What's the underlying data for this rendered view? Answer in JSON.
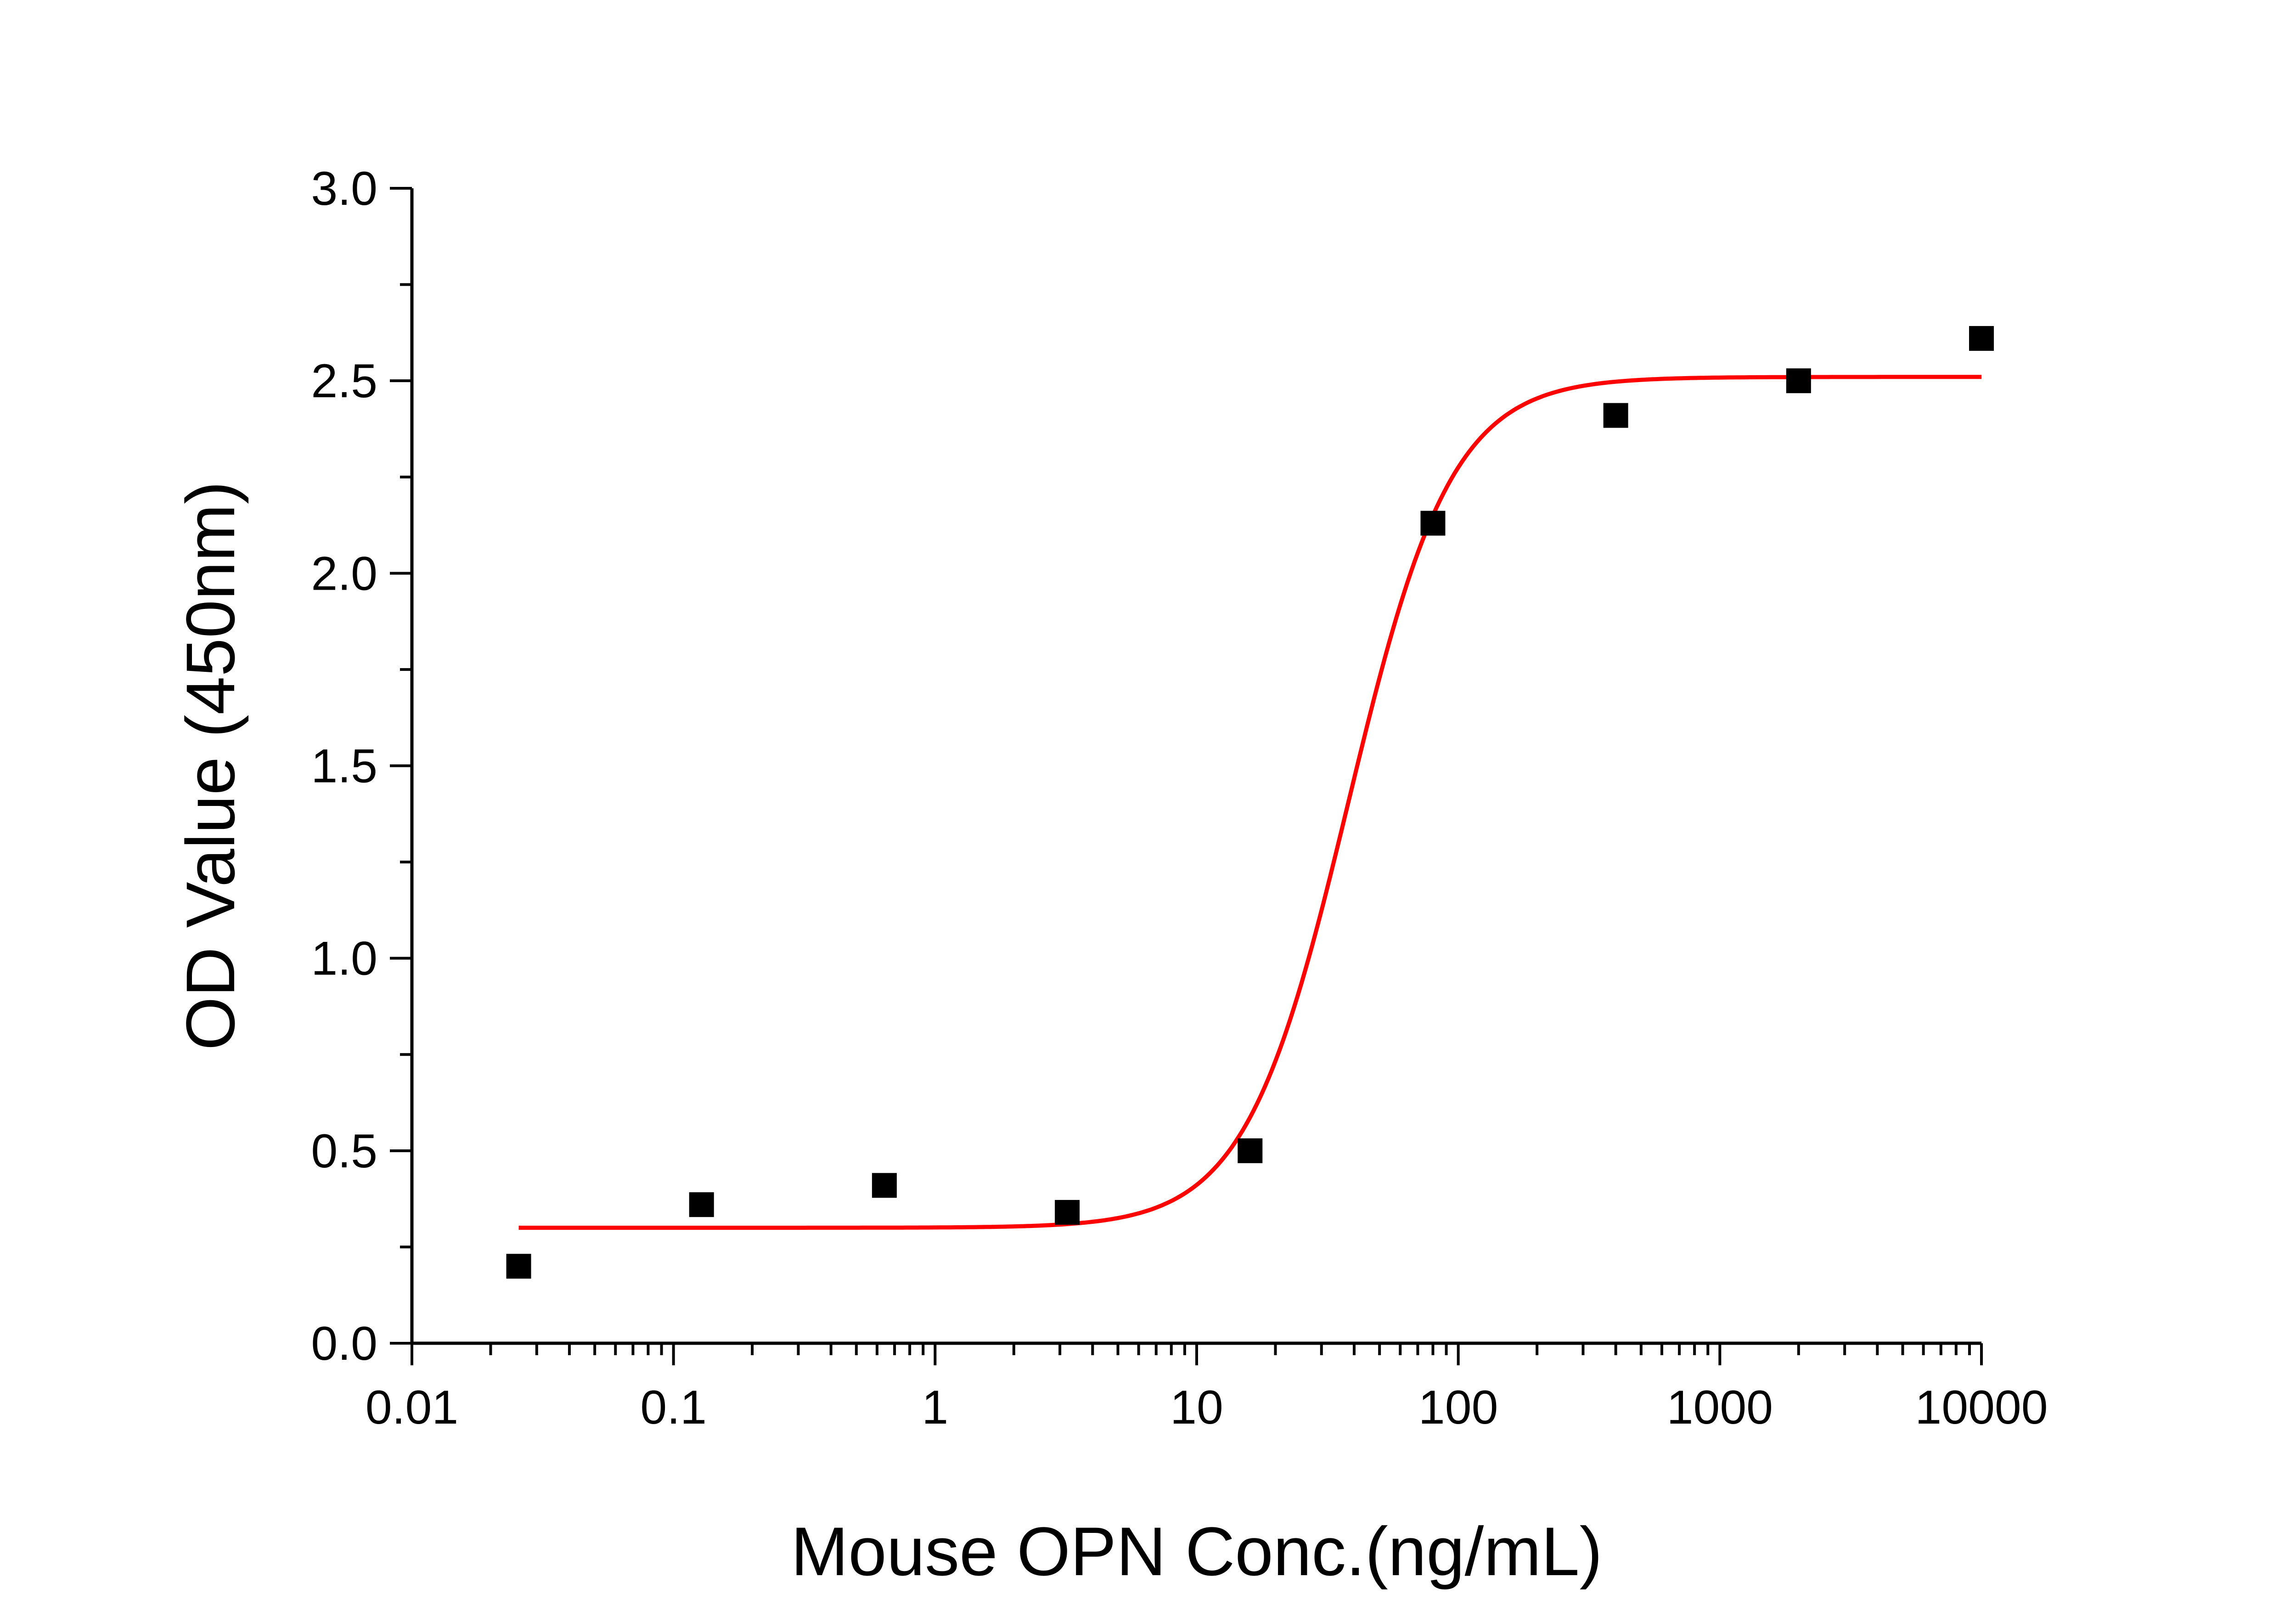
{
  "chart_data": {
    "type": "scatter",
    "title": "",
    "xlabel": "Mouse OPN Conc.(ng/mL)",
    "ylabel": "OD Value (450nm)",
    "x_scale": "log",
    "xlim": [
      0.01,
      10000
    ],
    "ylim": [
      0.0,
      3.0
    ],
    "x_tick_labels": [
      "0.01",
      "0.1",
      "1",
      "10",
      "100",
      "1000",
      "10000"
    ],
    "y_tick_labels": [
      "0.0",
      "0.5",
      "1.0",
      "1.5",
      "2.0",
      "2.5",
      "3.0"
    ],
    "grid": false,
    "legend": "none",
    "series": [
      {
        "type": "scatter",
        "marker": "square",
        "color": "#000000",
        "x": [
          0.0256,
          0.128,
          0.64,
          3.2,
          16,
          80,
          400,
          2000,
          10000
        ],
        "y": [
          0.2,
          0.36,
          0.41,
          0.34,
          0.5,
          2.13,
          2.41,
          2.5,
          2.61
        ]
      },
      {
        "type": "line",
        "color": "#ff0000",
        "fit": "4PL",
        "x_range": [
          0.0256,
          10000
        ],
        "bottom": 0.3,
        "top": 2.51,
        "ec50": 38,
        "hill": 2.2
      }
    ]
  }
}
